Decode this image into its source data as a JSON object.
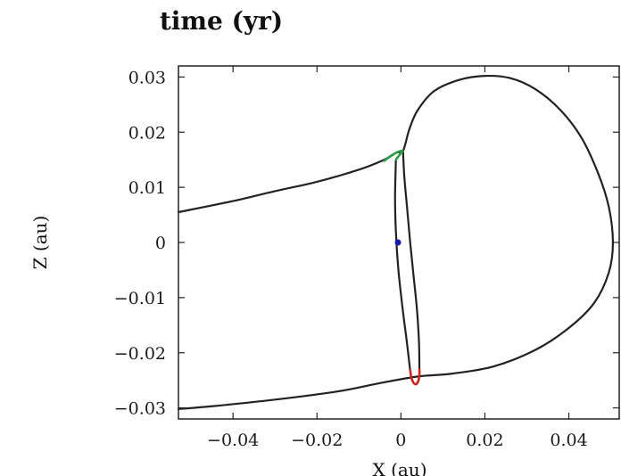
{
  "chart_data": {
    "type": "line",
    "title": "time (yr)",
    "xlabel": "X (au)",
    "ylabel": "Z (au)",
    "xlim": [
      -0.053,
      0.052
    ],
    "ylim": [
      -0.032,
      0.032
    ],
    "x_ticks": [
      -0.04,
      -0.02,
      0,
      0.02,
      0.04
    ],
    "x_tick_labels": [
      "−0.04",
      "−0.02",
      "0",
      "0.02",
      "0.04"
    ],
    "y_ticks": [
      -0.03,
      -0.02,
      -0.01,
      0,
      0.01,
      0.02,
      0.03
    ],
    "y_tick_labels": [
      "−0.03",
      "−0.02",
      "−0.01",
      "0",
      "0.01",
      "0.02",
      "0.03"
    ],
    "grid": false,
    "legend": false,
    "series": [
      {
        "color": "#222222",
        "points": [
          [
            -0.053,
            0.0055
          ],
          [
            -0.04,
            0.0075
          ],
          [
            -0.03,
            0.0093
          ],
          [
            -0.02,
            0.011
          ],
          [
            -0.01,
            0.0132
          ],
          [
            -0.004,
            0.015
          ],
          [
            -0.001,
            0.0163
          ],
          [
            0.0005,
            0.0166
          ],
          [
            0.002,
            0.0205
          ],
          [
            0.004,
            0.024
          ],
          [
            0.008,
            0.0275
          ],
          [
            0.014,
            0.0295
          ],
          [
            0.02,
            0.0302
          ],
          [
            0.026,
            0.0298
          ],
          [
            0.032,
            0.0278
          ],
          [
            0.038,
            0.024
          ],
          [
            0.043,
            0.019
          ],
          [
            0.047,
            0.0125
          ],
          [
            0.0495,
            0.0065
          ],
          [
            0.0505,
            0.0
          ],
          [
            0.0495,
            -0.0055
          ],
          [
            0.046,
            -0.011
          ],
          [
            0.04,
            -0.0155
          ],
          [
            0.032,
            -0.0195
          ],
          [
            0.022,
            -0.0225
          ],
          [
            0.012,
            -0.0238
          ],
          [
            0.004,
            -0.0243
          ],
          [
            -0.005,
            -0.0255
          ],
          [
            -0.015,
            -0.027
          ],
          [
            -0.03,
            -0.0285
          ],
          [
            -0.045,
            -0.0297
          ],
          [
            -0.053,
            -0.0302
          ]
        ]
      },
      {
        "color": "#222222",
        "points": [
          [
            0.0005,
            0.0166
          ],
          [
            0.0008,
            0.012
          ],
          [
            0.0015,
            0.006
          ],
          [
            0.0022,
            0.0
          ],
          [
            0.003,
            -0.006
          ],
          [
            0.0038,
            -0.012
          ],
          [
            0.0043,
            -0.018
          ],
          [
            0.0044,
            -0.023
          ]
        ]
      },
      {
        "color": "#222222",
        "points": [
          [
            -0.0012,
            0.015
          ],
          [
            -0.0014,
            0.008
          ],
          [
            -0.0012,
            0.002
          ],
          [
            -0.0006,
            -0.005
          ],
          [
            0.0004,
            -0.012
          ],
          [
            0.0014,
            -0.018
          ],
          [
            0.0022,
            -0.0232
          ]
        ]
      },
      {
        "color": "#2e9a4a",
        "points": [
          [
            -0.004,
            0.0148
          ],
          [
            -0.0022,
            0.0158
          ],
          [
            -0.0008,
            0.0164
          ],
          [
            0.0004,
            0.0166
          ],
          [
            -0.0004,
            0.0158
          ],
          [
            -0.0012,
            0.015
          ]
        ]
      },
      {
        "color": "#cc2222",
        "points": [
          [
            0.0022,
            -0.0232
          ],
          [
            0.0026,
            -0.0248
          ],
          [
            0.0034,
            -0.0257
          ],
          [
            0.0041,
            -0.0252
          ],
          [
            0.0044,
            -0.024
          ],
          [
            0.0044,
            -0.023
          ]
        ]
      }
    ],
    "markers": [
      {
        "x": -0.0007,
        "y": 0.0,
        "color": "#1a1aa8"
      }
    ]
  }
}
